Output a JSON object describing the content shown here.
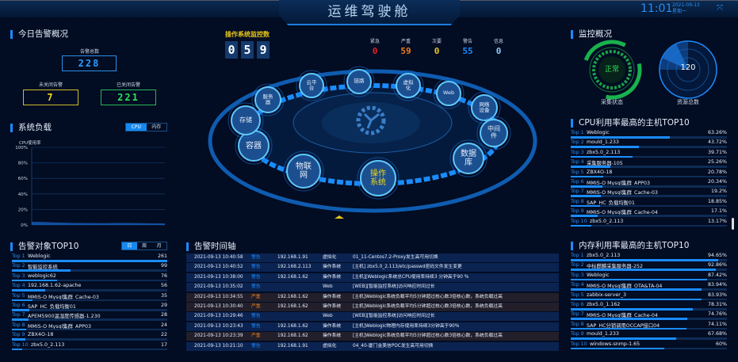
{
  "header": {
    "title": "运维驾驶舱",
    "time": "11:01",
    "date": "2021-09-13",
    "weekday": "星期一",
    "fullscreen_icon": "expand-icon"
  },
  "today_alerts": {
    "title": "今日告警概况",
    "total_label": "告警总数",
    "total": "228",
    "open_label": "未关闭告警",
    "open": "7",
    "closed_label": "已关闭告警",
    "closed": "221"
  },
  "system_load": {
    "title": "系统负载",
    "tabs": [
      "CPU",
      "内存"
    ],
    "active_tab": "CPU",
    "ylabel": "CPU使用率",
    "chart_data": {
      "type": "area",
      "ylabel": "CPU使用率",
      "yticks": [
        "0%",
        "20%",
        "40%",
        "60%",
        "80%",
        "100%"
      ],
      "ylim": [
        0,
        100
      ],
      "grid": true,
      "values": [
        4,
        4,
        3.8,
        3.5,
        3.2,
        3,
        2.8,
        2.6,
        2.5,
        2.4,
        2.4,
        2.3,
        2.3,
        2.4,
        2.5,
        2.6,
        2.5,
        2.4,
        2.3,
        2.2,
        2.1,
        2,
        2
      ]
    }
  },
  "alert_top10": {
    "title": "告警对象TOP10",
    "tabs": [
      "日",
      "周",
      "月"
    ],
    "active_tab": "日",
    "items": [
      {
        "rank": "Top 1",
        "name": "Weblogic",
        "value": 261
      },
      {
        "rank": "Top 2",
        "name": "智能监控系统",
        "value": 99
      },
      {
        "rank": "Top 3",
        "name": "weblogic62",
        "value": 76
      },
      {
        "rank": "Top 4",
        "name": "192.168.1.62-apache",
        "value": 56
      },
      {
        "rank": "Top 5",
        "name": "MMIS-O Mysql集群_Cache-03",
        "value": 35
      },
      {
        "rank": "Top 6",
        "name": "SAP_HC_负载均衡01",
        "value": 29
      },
      {
        "rank": "Top 7",
        "name": "APEM5900温湿度传感器-1.230",
        "value": 28
      },
      {
        "rank": "Top 8",
        "name": "MMIS-O Mysql集群_APP03",
        "value": 24
      },
      {
        "rank": "Top 9",
        "name": "ZBX4O-18",
        "value": 22
      },
      {
        "rank": "Top 10",
        "name": "zbx5.0_2.113",
        "value": 17
      }
    ]
  },
  "os_monitor": {
    "label": "操作系统监控数",
    "digits": [
      "0",
      "5",
      "9"
    ],
    "severity": [
      {
        "label": "紧急",
        "value": "0",
        "color": "#e8202a"
      },
      {
        "label": "严重",
        "value": "59",
        "color": "#f07d1a"
      },
      {
        "label": "次要",
        "value": "0",
        "color": "#e8c51a"
      },
      {
        "label": "警告",
        "value": "55",
        "color": "#1a8cff"
      },
      {
        "label": "信息",
        "value": "0",
        "color": "#8cc8f5"
      }
    ]
  },
  "categories": [
    {
      "label": "云平台"
    },
    {
      "label": "链路"
    },
    {
      "label": "虚拟化"
    },
    {
      "label": "Web"
    },
    {
      "label": "网络设备"
    },
    {
      "label": "中间件"
    },
    {
      "label": "数据库"
    },
    {
      "label": "操作系统",
      "active": true
    },
    {
      "label": "物联网"
    },
    {
      "label": "容器"
    },
    {
      "label": "存储"
    },
    {
      "label": "服务器"
    }
  ],
  "timeline": {
    "title": "告警时间轴",
    "rows": [
      {
        "time": "2021-09-13 10:40:58",
        "level": "警告",
        "ip": "192.168.1.91",
        "type": "虚拟化",
        "msg": "01_11-Centos7.2-Proxy发生高可用切换"
      },
      {
        "time": "2021-09-13 10:40:52",
        "level": "警告",
        "ip": "192.168.2.113",
        "type": "操作系统",
        "msg": "[主机] zbx5.0_2.113/etc/passwd密码文件发生变更"
      },
      {
        "time": "2021-09-13 10:38:00",
        "level": "警告",
        "ip": "192.168.1.62",
        "type": "操作系统",
        "msg": "[主机][Weblogic系统总CPU使用率持续3 分钟高于90 %"
      },
      {
        "time": "2021-09-13 10:35:02",
        "level": "警告",
        "ip": "",
        "type": "Web",
        "msg": "[WEB][智能监控系统]访问响应时间过长"
      },
      {
        "time": "2021-09-13 10:34:55",
        "level": "严重",
        "ip": "192.168.1.62",
        "type": "操作系统",
        "msg": "[主机]Weblogic系统负载平均5分钟超过核心数3倍核心数，系统负载过高"
      },
      {
        "time": "2021-09-13 10:30:40",
        "level": "严重",
        "ip": "192.168.1.62",
        "type": "操作系统",
        "msg": "[主机]Weblogic系统负载平均5分钟超过核心数3倍核心数，系统负载过高"
      },
      {
        "time": "2021-09-13 10:29:46",
        "level": "警告",
        "ip": "",
        "type": "Web",
        "msg": "[WEB][智能监控系统]访问响应时间过长"
      },
      {
        "time": "2021-09-13 10:23:43",
        "level": "警告",
        "ip": "192.168.1.62",
        "type": "操作系统",
        "msg": "[主机]Weblogic物理内存使用率持续3分钟高于90%"
      },
      {
        "time": "2021-09-13 10:23:39",
        "level": "严重",
        "ip": "192.168.1.62",
        "type": "操作系统",
        "msg": "[主机]Weblogic系统负载平均5分钟超过核心数3倍核心数，系统负载过高"
      },
      {
        "time": "2021-09-13 10:21:10",
        "level": "警告",
        "ip": "192.168.1.91",
        "type": "虚拟化",
        "msg": "04_40-厦门金美信POC发生高可用切换"
      }
    ]
  },
  "monitor_overview": {
    "title": "监控概况",
    "status": "正常",
    "status_label": "采集状态",
    "resources": "120",
    "resources_label": "资源总数"
  },
  "cpu_top10": {
    "title": "CPU利用率最高的主机TOP10",
    "items": [
      {
        "rank": "Top 1",
        "name": "Weblogic",
        "value": "63.26%"
      },
      {
        "rank": "Top 2",
        "name": "mould_1.233",
        "value": "43.72%"
      },
      {
        "rank": "Top 3",
        "name": "zbx5.0_2.113",
        "value": "39.71%"
      },
      {
        "rank": "Top 4",
        "name": "采集服务器-105",
        "value": "25.26%"
      },
      {
        "rank": "Top 5",
        "name": "ZBX4O-18",
        "value": "20.78%"
      },
      {
        "rank": "Top 6",
        "name": "MMIS-O Mysql集群_APP03",
        "value": "20.34%"
      },
      {
        "rank": "Top 7",
        "name": "MMIS-O Mysql集群_Cache-03",
        "value": "19.2%"
      },
      {
        "rank": "Top 8",
        "name": "SAP_HC_负载均衡01",
        "value": "18.85%"
      },
      {
        "rank": "Top 9",
        "name": "MMIS-O Mysql集群_Cache-04",
        "value": "17.1%"
      },
      {
        "rank": "Top 10",
        "name": "zbx5.0_2.113",
        "value": "13.17%"
      }
    ]
  },
  "mem_top10": {
    "title": "内存利用率最高的主机TOP10",
    "items": [
      {
        "rank": "Top 1",
        "name": "zbx5.0_2.113",
        "value": "94.65%"
      },
      {
        "rank": "Top 2",
        "name": "中标麒麟采集服务器-252",
        "value": "92.86%"
      },
      {
        "rank": "Top 3",
        "name": "Weblogic",
        "value": "87.42%"
      },
      {
        "rank": "Top 4",
        "name": "MMIS-O Mysql集群_OTA&TA-04",
        "value": "83.94%"
      },
      {
        "rank": "Top 5",
        "name": "zabbix-server_3",
        "value": "83.93%"
      },
      {
        "rank": "Top 6",
        "name": "zbx5.0_1.162",
        "value": "78.31%"
      },
      {
        "rank": "Top 7",
        "name": "MMIS-O Mysql集群_Cache-04",
        "value": "74.76%"
      },
      {
        "rank": "Top 8",
        "name": "SAP_HC分销调用OCCAP接口04",
        "value": "74.11%"
      },
      {
        "rank": "Top 9",
        "name": "mould_1.233",
        "value": "67.68%"
      },
      {
        "rank": "Top 10",
        "name": "windows-snmp-1.65",
        "value": "60%"
      }
    ]
  }
}
